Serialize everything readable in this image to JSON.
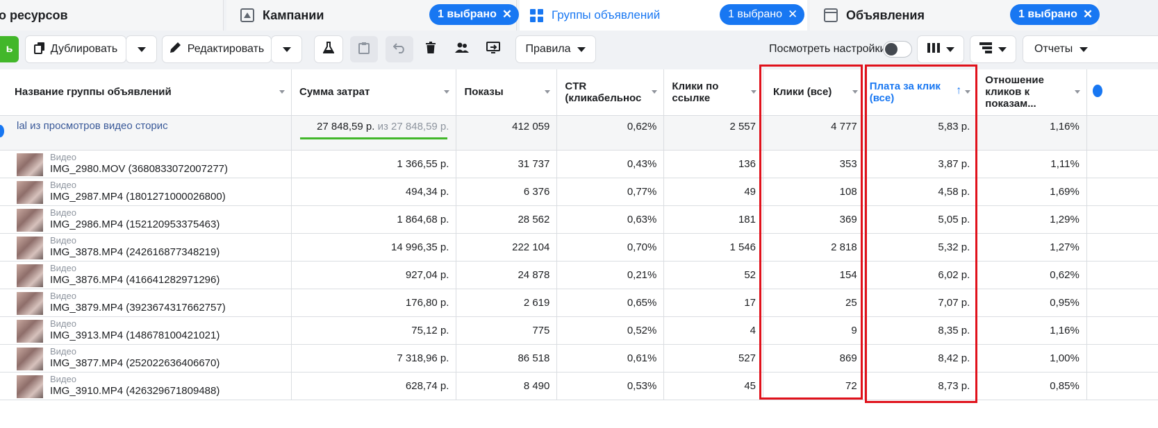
{
  "tabs": [
    {
      "label": "о ресурсов",
      "selected": ""
    },
    {
      "label": "Кампании",
      "selected": ""
    },
    {
      "label": "Группы объявлений",
      "selected": "1 выбрано"
    },
    {
      "label": "Объявления",
      "selected": "1 выбрано"
    }
  ],
  "campaign_pill": "1 выбрано",
  "toolbar": {
    "create_label": "ь",
    "duplicate_label": "Дублировать",
    "edit_label": "Редактировать",
    "rules_label": "Правила",
    "view_settings_label": "Посмотреть настройки",
    "reports_label": "Отчеты"
  },
  "columns": [
    "Название группы объявлений",
    "Сумма затрат",
    "Показы",
    "CTR (кликабельнос",
    "Клики по ссылке",
    "Клики (все)",
    "Плата за клик (все)",
    "Отношение кликов к показам..."
  ],
  "summary": {
    "name": "lal из просмотров видео сторис",
    "spend": "27 848,59 р.",
    "spend_of": "из 27 848,59 р.",
    "impressions": "412 059",
    "ctr": "0,62%",
    "link_clicks": "2 557",
    "clicks_all": "4 777",
    "cpc_all": "5,83 р.",
    "click_ratio": "1,16%"
  },
  "rows": [
    {
      "type": "Видео",
      "name": "IMG_2980.MOV (3680833072007277)",
      "spend": "1 366,55 р.",
      "impressions": "31 737",
      "ctr": "0,43%",
      "link_clicks": "136",
      "clicks_all": "353",
      "cpc_all": "3,87 р.",
      "click_ratio": "1,11%"
    },
    {
      "type": "Видео",
      "name": "IMG_2987.MP4 (1801271000026800)",
      "spend": "494,34 р.",
      "impressions": "6 376",
      "ctr": "0,77%",
      "link_clicks": "49",
      "clicks_all": "108",
      "cpc_all": "4,58 р.",
      "click_ratio": "1,69%"
    },
    {
      "type": "Видео",
      "name": "IMG_2986.MP4 (152120953375463)",
      "spend": "1 864,68 р.",
      "impressions": "28 562",
      "ctr": "0,63%",
      "link_clicks": "181",
      "clicks_all": "369",
      "cpc_all": "5,05 р.",
      "click_ratio": "1,29%"
    },
    {
      "type": "Видео",
      "name": "IMG_3878.MP4 (242616877348219)",
      "spend": "14 996,35 р.",
      "impressions": "222 104",
      "ctr": "0,70%",
      "link_clicks": "1 546",
      "clicks_all": "2 818",
      "cpc_all": "5,32 р.",
      "click_ratio": "1,27%"
    },
    {
      "type": "Видео",
      "name": "IMG_3876.MP4 (416641282971296)",
      "spend": "927,04 р.",
      "impressions": "24 878",
      "ctr": "0,21%",
      "link_clicks": "52",
      "clicks_all": "154",
      "cpc_all": "6,02 р.",
      "click_ratio": "0,62%"
    },
    {
      "type": "Видео",
      "name": "IMG_3879.MP4 (3923674317662757)",
      "spend": "176,80 р.",
      "impressions": "2 619",
      "ctr": "0,65%",
      "link_clicks": "17",
      "clicks_all": "25",
      "cpc_all": "7,07 р.",
      "click_ratio": "0,95%"
    },
    {
      "type": "Видео",
      "name": "IMG_3913.MP4 (148678100421021)",
      "spend": "75,12 р.",
      "impressions": "775",
      "ctr": "0,52%",
      "link_clicks": "4",
      "clicks_all": "9",
      "cpc_all": "8,35 р.",
      "click_ratio": "1,16%"
    },
    {
      "type": "Видео",
      "name": "IMG_3877.MP4 (252022636406670)",
      "spend": "7 318,96 р.",
      "impressions": "86 518",
      "ctr": "0,61%",
      "link_clicks": "527",
      "clicks_all": "869",
      "cpc_all": "8,42 р.",
      "click_ratio": "1,00%"
    },
    {
      "type": "Видео",
      "name": "IMG_3910.MP4 (426329671809488)",
      "spend": "628,74 р.",
      "impressions": "8 490",
      "ctr": "0,53%",
      "link_clicks": "45",
      "clicks_all": "72",
      "cpc_all": "8,73 р.",
      "click_ratio": "0,85%"
    }
  ],
  "colors": {
    "accent": "#1877f2",
    "highlight": "#e0111b",
    "progress": "#42b72a"
  }
}
